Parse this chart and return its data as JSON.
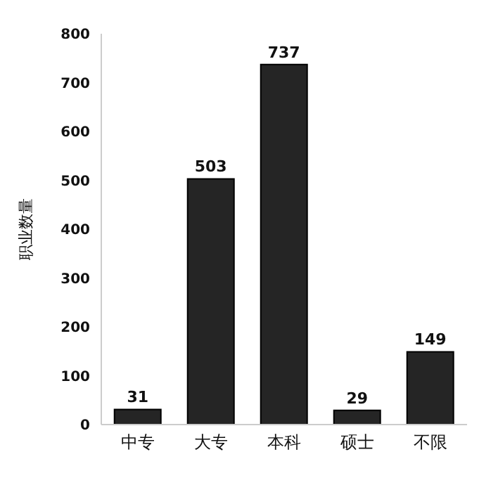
{
  "chart_data": {
    "type": "bar",
    "ylabel": "职业数量",
    "categories": [
      "中专",
      "大专",
      "本科",
      "硕士",
      "不限"
    ],
    "values": [
      31,
      503,
      737,
      29,
      149
    ],
    "color": "#252525",
    "ylim": [
      0,
      800
    ],
    "yticks": [
      0,
      100,
      200,
      300,
      400,
      500,
      600,
      700,
      800
    ],
    "grid": false,
    "data_labels": true
  }
}
